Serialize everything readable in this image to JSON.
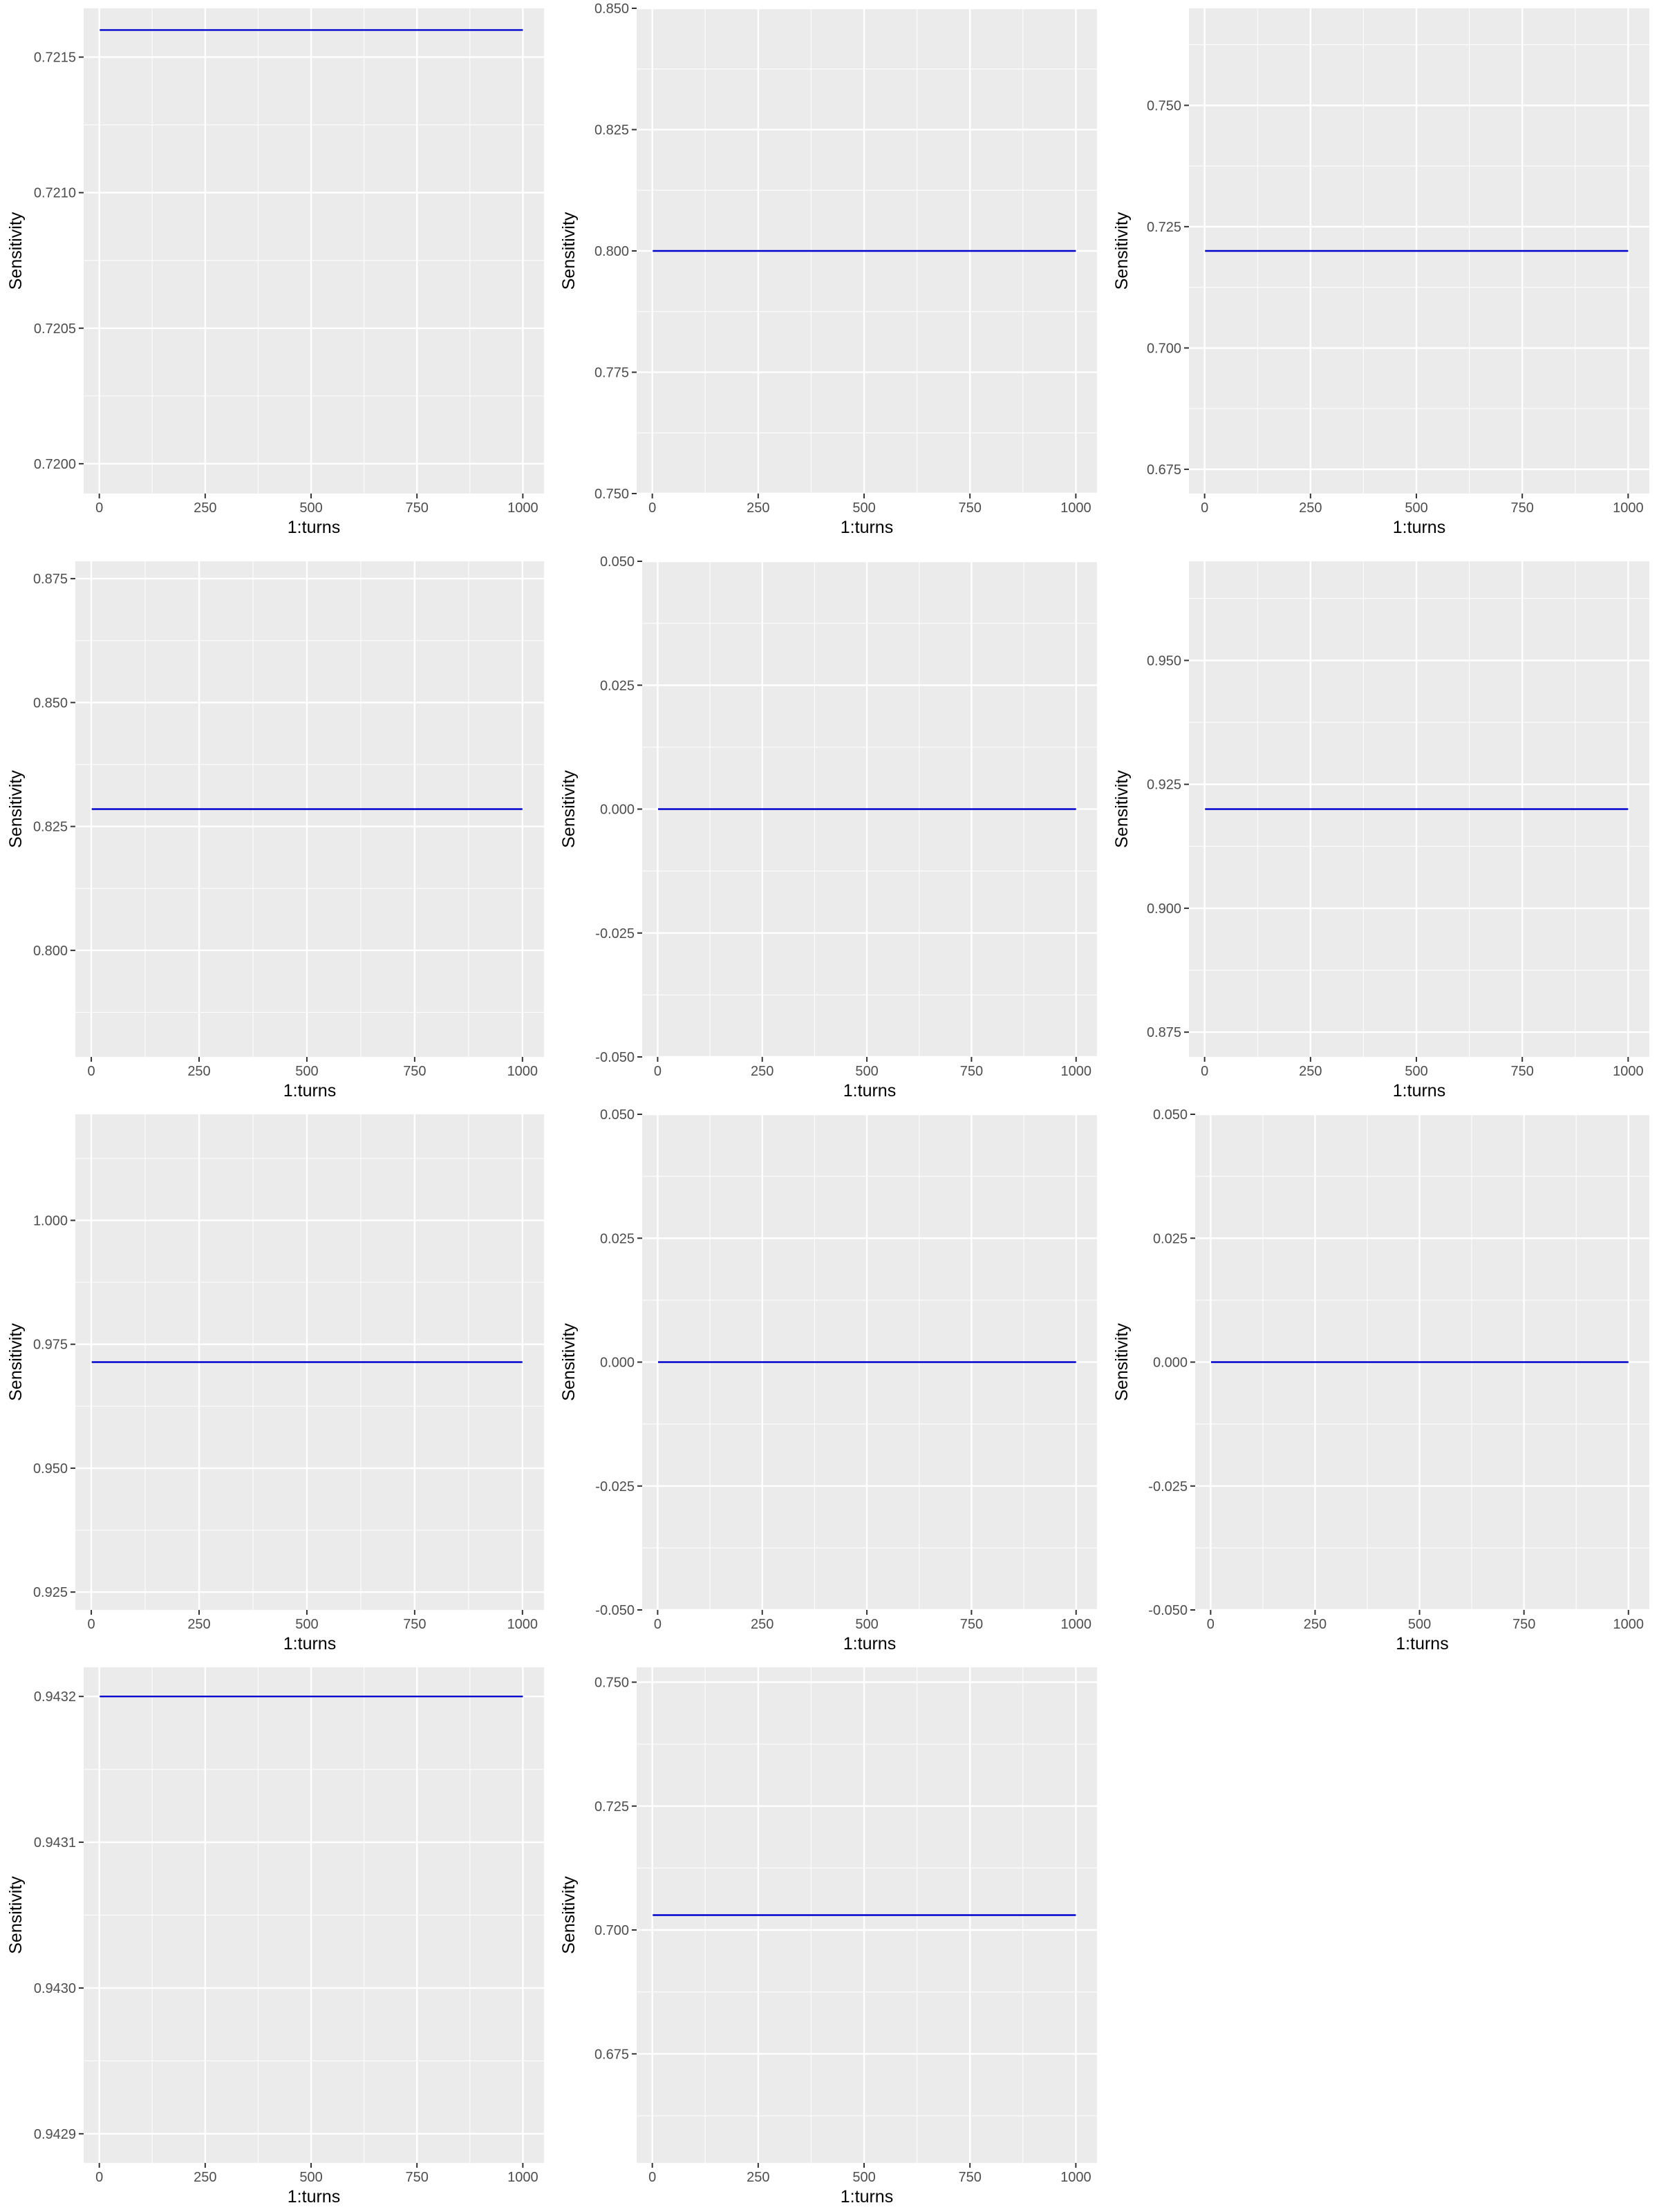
{
  "colors": {
    "panel_bg": "#ebebeb",
    "grid": "#ffffff",
    "series": "#0000cc",
    "tick": "#333333"
  },
  "chart_data": [
    {
      "type": "line",
      "xlabel": "1:turns",
      "ylabel": "Sensitivity",
      "xlim": [
        -37,
        1050
      ],
      "xticks": [
        0,
        250,
        500,
        750,
        1000
      ],
      "xtick_labels": [
        "0",
        "250",
        "500",
        "750",
        "1000"
      ],
      "ylim": [
        0.71989,
        0.72168
      ],
      "yticks": [
        0.72,
        0.7205,
        0.721,
        0.7215
      ],
      "ytick_labels": [
        "0.7200",
        "0.7205",
        "0.7210",
        "0.7215"
      ],
      "series": [
        {
          "x": [
            1,
            1000
          ],
          "y": [
            0.7216,
            0.7216
          ]
        }
      ]
    },
    {
      "type": "line",
      "xlabel": "1:turns",
      "ylabel": "Sensitivity",
      "xlim": [
        -37,
        1050
      ],
      "xticks": [
        0,
        250,
        500,
        750,
        1000
      ],
      "xtick_labels": [
        "0",
        "250",
        "500",
        "750",
        "1000"
      ],
      "ylim": [
        0.75,
        0.85
      ],
      "yticks": [
        0.75,
        0.775,
        0.8,
        0.825,
        0.85
      ],
      "ytick_labels": [
        "0.750",
        "0.775",
        "0.800",
        "0.825",
        "0.850"
      ],
      "series": [
        {
          "x": [
            1,
            1000
          ],
          "y": [
            0.8,
            0.8
          ]
        }
      ]
    },
    {
      "type": "line",
      "xlabel": "1:turns",
      "ylabel": "Sensitivity",
      "xlim": [
        -37,
        1050
      ],
      "xticks": [
        0,
        250,
        500,
        750,
        1000
      ],
      "xtick_labels": [
        "0",
        "250",
        "500",
        "750",
        "1000"
      ],
      "ylim": [
        0.67,
        0.77
      ],
      "yticks": [
        0.675,
        0.7,
        0.725,
        0.75
      ],
      "ytick_labels": [
        "0.675",
        "0.700",
        "0.725",
        "0.750"
      ],
      "series": [
        {
          "x": [
            1,
            1000
          ],
          "y": [
            0.72,
            0.72
          ]
        }
      ]
    },
    {
      "type": "line",
      "xlabel": "1:turns",
      "ylabel": "Sensitivity",
      "xlim": [
        -37,
        1050
      ],
      "xticks": [
        0,
        250,
        500,
        750,
        1000
      ],
      "xtick_labels": [
        "0",
        "250",
        "500",
        "750",
        "1000"
      ],
      "ylim": [
        0.7785,
        0.8785
      ],
      "yticks": [
        0.8,
        0.825,
        0.85,
        0.875
      ],
      "ytick_labels": [
        "0.800",
        "0.825",
        "0.850",
        "0.875"
      ],
      "series": [
        {
          "x": [
            1,
            1000
          ],
          "y": [
            0.8285,
            0.8285
          ]
        }
      ]
    },
    {
      "type": "line",
      "xlabel": "1:turns",
      "ylabel": "Sensitivity",
      "xlim": [
        -37,
        1050
      ],
      "xticks": [
        0,
        250,
        500,
        750,
        1000
      ],
      "xtick_labels": [
        "0",
        "250",
        "500",
        "750",
        "1000"
      ],
      "ylim": [
        -0.05,
        0.05
      ],
      "yticks": [
        -0.05,
        -0.025,
        0,
        0.025,
        0.05
      ],
      "ytick_labels": [
        "-0.050",
        "-0.025",
        "0.000",
        "0.025",
        "0.050"
      ],
      "series": [
        {
          "x": [
            1,
            1000
          ],
          "y": [
            0,
            0
          ]
        }
      ]
    },
    {
      "type": "line",
      "xlabel": "1:turns",
      "ylabel": "Sensitivity",
      "xlim": [
        -37,
        1050
      ],
      "xticks": [
        0,
        250,
        500,
        750,
        1000
      ],
      "xtick_labels": [
        "0",
        "250",
        "500",
        "750",
        "1000"
      ],
      "ylim": [
        0.87,
        0.97
      ],
      "yticks": [
        0.875,
        0.9,
        0.925,
        0.95
      ],
      "ytick_labels": [
        "0.875",
        "0.900",
        "0.925",
        "0.950"
      ],
      "series": [
        {
          "x": [
            1,
            1000
          ],
          "y": [
            0.92,
            0.92
          ]
        }
      ]
    },
    {
      "type": "line",
      "xlabel": "1:turns",
      "ylabel": "Sensitivity",
      "xlim": [
        -37,
        1050
      ],
      "xticks": [
        0,
        250,
        500,
        750,
        1000
      ],
      "xtick_labels": [
        "0",
        "250",
        "500",
        "750",
        "1000"
      ],
      "ylim": [
        0.9214,
        1.0214
      ],
      "yticks": [
        0.925,
        0.95,
        0.975,
        1.0
      ],
      "ytick_labels": [
        "0.925",
        "0.950",
        "0.975",
        "1.000"
      ],
      "series": [
        {
          "x": [
            1,
            1000
          ],
          "y": [
            0.9714,
            0.9714
          ]
        }
      ]
    },
    {
      "type": "line",
      "xlabel": "1:turns",
      "ylabel": "Sensitivity",
      "xlim": [
        -37,
        1050
      ],
      "xticks": [
        0,
        250,
        500,
        750,
        1000
      ],
      "xtick_labels": [
        "0",
        "250",
        "500",
        "750",
        "1000"
      ],
      "ylim": [
        -0.05,
        0.05
      ],
      "yticks": [
        -0.05,
        -0.025,
        0,
        0.025,
        0.05
      ],
      "ytick_labels": [
        "-0.050",
        "-0.025",
        "0.000",
        "0.025",
        "0.050"
      ],
      "series": [
        {
          "x": [
            1,
            1000
          ],
          "y": [
            0,
            0
          ]
        }
      ]
    },
    {
      "type": "line",
      "xlabel": "1:turns",
      "ylabel": "Sensitivity",
      "xlim": [
        -37,
        1050
      ],
      "xticks": [
        0,
        250,
        500,
        750,
        1000
      ],
      "xtick_labels": [
        "0",
        "250",
        "500",
        "750",
        "1000"
      ],
      "ylim": [
        -0.05,
        0.05
      ],
      "yticks": [
        -0.05,
        -0.025,
        0,
        0.025,
        0.05
      ],
      "ytick_labels": [
        "-0.050",
        "-0.025",
        "0.000",
        "0.025",
        "0.050"
      ],
      "series": [
        {
          "x": [
            1,
            1000
          ],
          "y": [
            0,
            0
          ]
        }
      ]
    },
    {
      "type": "line",
      "xlabel": "1:turns",
      "ylabel": "Sensitivity",
      "xlim": [
        -37,
        1050
      ],
      "xticks": [
        0,
        250,
        500,
        750,
        1000
      ],
      "xtick_labels": [
        "0",
        "250",
        "500",
        "750",
        "1000"
      ],
      "ylim": [
        0.94288,
        0.94322
      ],
      "yticks": [
        0.9429,
        0.943,
        0.9431,
        0.9432
      ],
      "ytick_labels": [
        "0.9429",
        "0.9430",
        "0.9431",
        "0.9432"
      ],
      "series": [
        {
          "x": [
            1,
            1000
          ],
          "y": [
            0.9432,
            0.9432
          ]
        }
      ]
    },
    {
      "type": "line",
      "xlabel": "1:turns",
      "ylabel": "Sensitivity",
      "xlim": [
        -37,
        1050
      ],
      "xticks": [
        0,
        250,
        500,
        750,
        1000
      ],
      "xtick_labels": [
        "0",
        "250",
        "500",
        "750",
        "1000"
      ],
      "ylim": [
        0.653,
        0.753
      ],
      "yticks": [
        0.675,
        0.7,
        0.725,
        0.75
      ],
      "ytick_labels": [
        "0.675",
        "0.700",
        "0.725",
        "0.750"
      ],
      "series": [
        {
          "x": [
            1,
            1000
          ],
          "y": [
            0.703,
            0.703
          ]
        }
      ]
    }
  ]
}
